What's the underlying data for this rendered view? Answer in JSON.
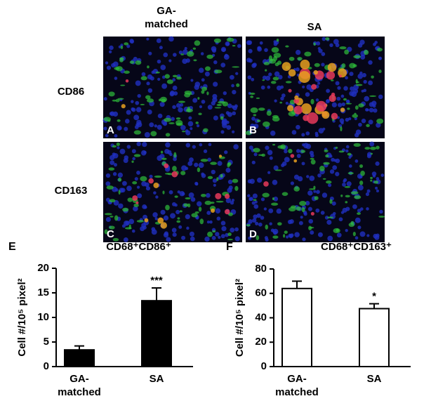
{
  "figure": {
    "column_headers": [
      "GA-matched",
      "SA"
    ],
    "row_labels": [
      "CD86",
      "CD163"
    ],
    "panel_letters": [
      "A",
      "B",
      "C",
      "D"
    ]
  },
  "chart_data": [
    {
      "type": "bar",
      "panel": "E",
      "title": "CD68⁺CD86⁺",
      "y_label": "Cell #/10⁵ pixel²",
      "categories": [
        "GA-matched",
        "SA"
      ],
      "values": [
        3.4,
        13.4
      ],
      "errors": [
        0.8,
        2.6
      ],
      "annotations": [
        null,
        "***"
      ],
      "color": "#000000",
      "ylim": [
        0,
        20
      ],
      "yticks": [
        0,
        5,
        10,
        15,
        20
      ]
    },
    {
      "type": "bar",
      "panel": "F",
      "title": "CD68⁺CD163⁺",
      "y_label": "Cell #/10⁵ pixel²",
      "categories": [
        "GA-matched",
        "SA"
      ],
      "values": [
        64,
        47.5
      ],
      "errors": [
        6,
        4
      ],
      "annotations": [
        null,
        "*"
      ],
      "color": "#ffffff",
      "ylim": [
        0,
        80
      ],
      "yticks": [
        0,
        20,
        40,
        60,
        80
      ]
    }
  ]
}
